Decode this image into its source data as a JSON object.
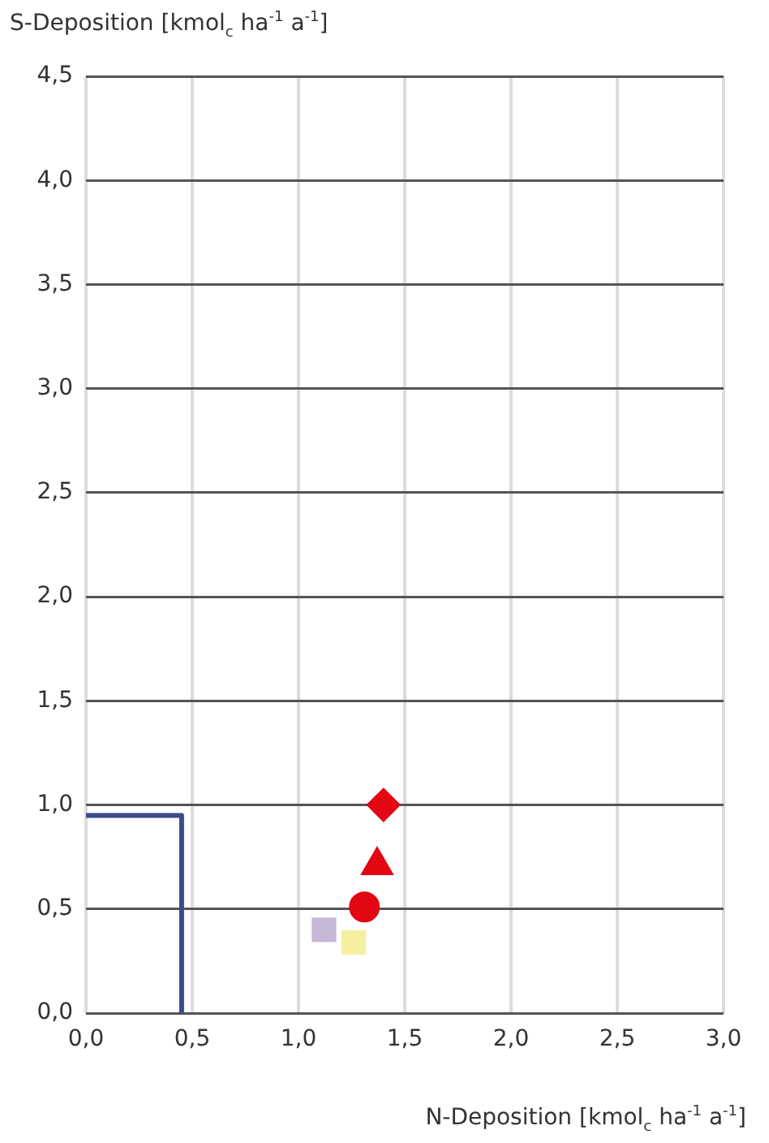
{
  "chart_data": {
    "type": "scatter",
    "ylabel": "S-Deposition [kmol$_{c}$ ha$^{-1}$ a$^{-1}$]",
    "xlabel": "N-Deposition [kmol$_{c}$ ha$^{-1}$ a$^{-1}$]",
    "xlim": [
      0,
      3
    ],
    "ylim": [
      0,
      4.5
    ],
    "xticks": [
      {
        "value": 0,
        "label": "0,0"
      },
      {
        "value": 0.5,
        "label": "0,5"
      },
      {
        "value": 1,
        "label": "1,0"
      },
      {
        "value": 1.5,
        "label": "1,5"
      },
      {
        "value": 2,
        "label": "2,0"
      },
      {
        "value": 2.5,
        "label": "2,5"
      },
      {
        "value": 3,
        "label": "3,0"
      }
    ],
    "yticks": [
      {
        "value": 0,
        "label": "0,0"
      },
      {
        "value": 0.5,
        "label": "0,5"
      },
      {
        "value": 1,
        "label": "1,0"
      },
      {
        "value": 1.5,
        "label": "1,5"
      },
      {
        "value": 2,
        "label": "2,0"
      },
      {
        "value": 2.5,
        "label": "2,5"
      },
      {
        "value": 3,
        "label": "3,0"
      },
      {
        "value": 3.5,
        "label": "3,5"
      },
      {
        "value": 4,
        "label": "4,0"
      },
      {
        "value": 4.5,
        "label": "4,5"
      }
    ],
    "grid": true,
    "legend": false,
    "series": [
      {
        "type": "line",
        "color": "#3d4a8a",
        "marker": "none",
        "x": [
          0,
          0.45,
          0.45
        ],
        "values": [
          0.95,
          0.95,
          0
        ]
      },
      {
        "color": "#c8b8d8",
        "marker": "square",
        "x": [
          1.12
        ],
        "values": [
          0.4
        ]
      },
      {
        "color": "#e30613",
        "marker": "circle",
        "x": [
          1.31
        ],
        "values": [
          0.51
        ]
      },
      {
        "color": "#f5f0a0",
        "marker": "square",
        "x": [
          1.26
        ],
        "values": [
          0.34
        ]
      },
      {
        "color": "#e30613",
        "marker": "triangle",
        "x": [
          1.37
        ],
        "values": [
          0.71
        ]
      },
      {
        "color": "#e30613",
        "marker": "diamond",
        "x": [
          1.4
        ],
        "values": [
          1.0
        ]
      }
    ]
  }
}
